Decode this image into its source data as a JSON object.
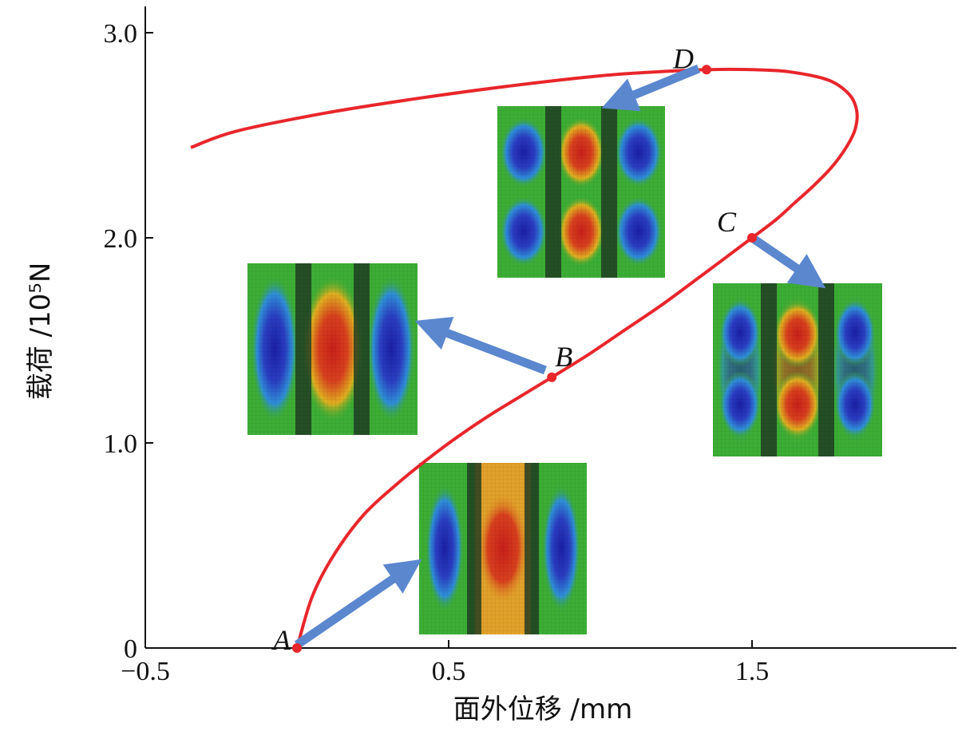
{
  "chart_data": {
    "type": "line",
    "xlabel": "面外位移 /mm",
    "ylabel": "载荷 /10⁵N",
    "xlim": [
      -0.5,
      2.15
    ],
    "ylim": [
      0,
      3.05
    ],
    "x_ticks": [
      "−0.5",
      "0.5",
      "1.5"
    ],
    "x_tick_values": [
      -0.5,
      0.5,
      1.5
    ],
    "y_ticks": [
      "0",
      "1.0",
      "2.0",
      "3.0"
    ],
    "y_tick_values": [
      0,
      1.0,
      2.0,
      3.0
    ],
    "grid": false,
    "line_color": "#e8262b",
    "arrow_color": "#5b87cf",
    "series": [
      {
        "x": [
          0.0,
          0.05,
          0.12,
          0.22,
          0.33,
          0.43,
          0.53,
          0.63,
          0.74,
          0.84,
          0.96,
          1.08,
          1.2,
          1.31,
          1.41,
          1.5,
          1.58,
          1.64,
          1.7,
          1.76,
          1.81,
          1.84,
          1.845,
          1.82,
          1.75,
          1.62,
          1.5,
          1.35,
          1.2,
          1.0,
          0.7,
          0.4,
          0.1,
          -0.2,
          -0.35
        ],
        "y": [
          0.0,
          0.25,
          0.45,
          0.65,
          0.8,
          0.92,
          1.03,
          1.13,
          1.23,
          1.32,
          1.43,
          1.55,
          1.67,
          1.79,
          1.9,
          2.0,
          2.09,
          2.17,
          2.25,
          2.34,
          2.44,
          2.53,
          2.62,
          2.7,
          2.77,
          2.81,
          2.82,
          2.82,
          2.81,
          2.79,
          2.74,
          2.68,
          2.61,
          2.52,
          2.44
        ]
      }
    ],
    "points": [
      {
        "label": "A",
        "x": 0.0,
        "y": 0.0
      },
      {
        "label": "B",
        "x": 0.84,
        "y": 1.32
      },
      {
        "label": "C",
        "x": 1.5,
        "y": 2.0
      },
      {
        "label": "D",
        "x": 1.35,
        "y": 2.82
      }
    ],
    "contour_colors": {
      "low": "#1b1fa5",
      "mid_low": "#2f8fd8",
      "mid": "#3cae35",
      "mid_high": "#e0b020",
      "high": "#c8201a",
      "stiffener": "#1f3a22"
    }
  }
}
